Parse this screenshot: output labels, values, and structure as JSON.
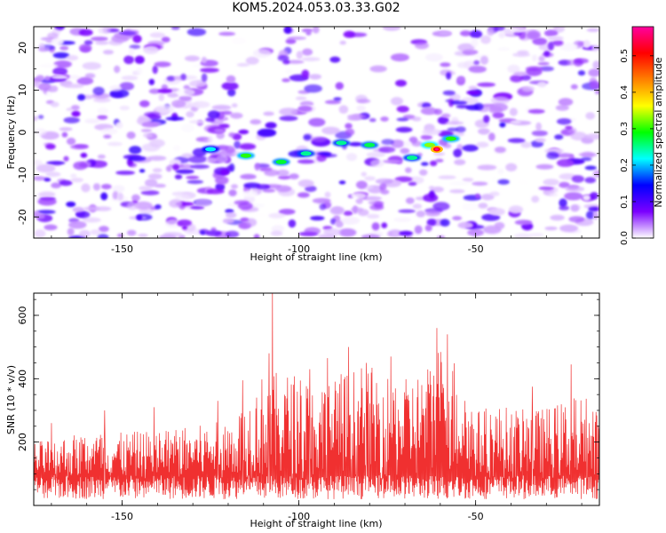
{
  "title": "KOM5.2024.053.03.33.G02",
  "chart_data": [
    {
      "type": "heatmap",
      "xlabel": "Height of straight line (km)",
      "ylabel": "Frequency (Hz)",
      "xlim": [
        -175,
        -15
      ],
      "ylim": [
        -25,
        25
      ],
      "xticks": [
        -150,
        -100,
        -50
      ],
      "yticks": [
        -20,
        -10,
        0,
        10,
        20
      ],
      "colorbar": {
        "label": "Normalized spectral amplitude",
        "range": [
          0,
          0.58
        ],
        "ticks": [
          0.0,
          0.1,
          0.2,
          0.3,
          0.4,
          0.5
        ],
        "colors": [
          "#ffffff",
          "#7b00ff",
          "#0000ff",
          "#00ffff",
          "#00ff00",
          "#ffff00",
          "#ff8000",
          "#ff0000",
          "#ff00a0"
        ]
      },
      "peak": {
        "x": -61,
        "y": -4,
        "value": 0.58
      },
      "features": [
        {
          "x": -115,
          "y": -5.5,
          "value": 0.3
        },
        {
          "x": -105,
          "y": -7,
          "value": 0.28
        },
        {
          "x": -98,
          "y": -5,
          "value": 0.25
        },
        {
          "x": -88,
          "y": -2.5,
          "value": 0.25
        },
        {
          "x": -80,
          "y": -3,
          "value": 0.27
        },
        {
          "x": -63,
          "y": -3,
          "value": 0.33
        },
        {
          "x": -57,
          "y": -1.5,
          "value": 0.3
        },
        {
          "x": -68,
          "y": -6,
          "value": 0.25
        },
        {
          "x": -125,
          "y": -4,
          "value": 0.22
        }
      ]
    },
    {
      "type": "line",
      "xlabel": "Height of straight line (km)",
      "ylabel": "SNR (10 * v/v)",
      "xlim": [
        -175,
        -15
      ],
      "ylim": [
        0,
        670
      ],
      "xticks": [
        -150,
        -100,
        -50
      ],
      "yticks": [
        200,
        400,
        600
      ],
      "color": "#f03030",
      "envelope": [
        {
          "x": -175,
          "y": 200
        },
        {
          "x": -160,
          "y": 235
        },
        {
          "x": -150,
          "y": 230
        },
        {
          "x": -140,
          "y": 240
        },
        {
          "x": -130,
          "y": 250
        },
        {
          "x": -120,
          "y": 270
        },
        {
          "x": -115,
          "y": 330
        },
        {
          "x": -110,
          "y": 420
        },
        {
          "x": -100,
          "y": 420
        },
        {
          "x": -95,
          "y": 380
        },
        {
          "x": -90,
          "y": 440
        },
        {
          "x": -85,
          "y": 430
        },
        {
          "x": -80,
          "y": 440
        },
        {
          "x": -75,
          "y": 420
        },
        {
          "x": -70,
          "y": 400
        },
        {
          "x": -64,
          "y": 440
        },
        {
          "x": -60,
          "y": 520
        },
        {
          "x": -55,
          "y": 460
        },
        {
          "x": -50,
          "y": 300
        },
        {
          "x": -45,
          "y": 320
        },
        {
          "x": -40,
          "y": 310
        },
        {
          "x": -35,
          "y": 300
        },
        {
          "x": -30,
          "y": 310
        },
        {
          "x": -25,
          "y": 330
        },
        {
          "x": -20,
          "y": 350
        },
        {
          "x": -15,
          "y": 330
        }
      ],
      "spikes": [
        {
          "x": -107.5,
          "y": 670
        },
        {
          "x": -108.5,
          "y": 480
        },
        {
          "x": -61,
          "y": 560
        },
        {
          "x": -58,
          "y": 540
        },
        {
          "x": -92,
          "y": 465
        },
        {
          "x": -86,
          "y": 500
        },
        {
          "x": -81,
          "y": 450
        },
        {
          "x": -74,
          "y": 470
        },
        {
          "x": -97,
          "y": 430
        },
        {
          "x": -116,
          "y": 395
        },
        {
          "x": -123,
          "y": 330
        },
        {
          "x": -141,
          "y": 310
        },
        {
          "x": -155,
          "y": 300
        },
        {
          "x": -170,
          "y": 260
        },
        {
          "x": -23,
          "y": 445
        },
        {
          "x": -34,
          "y": 375
        }
      ],
      "baseline_range": [
        20,
        170
      ]
    }
  ]
}
